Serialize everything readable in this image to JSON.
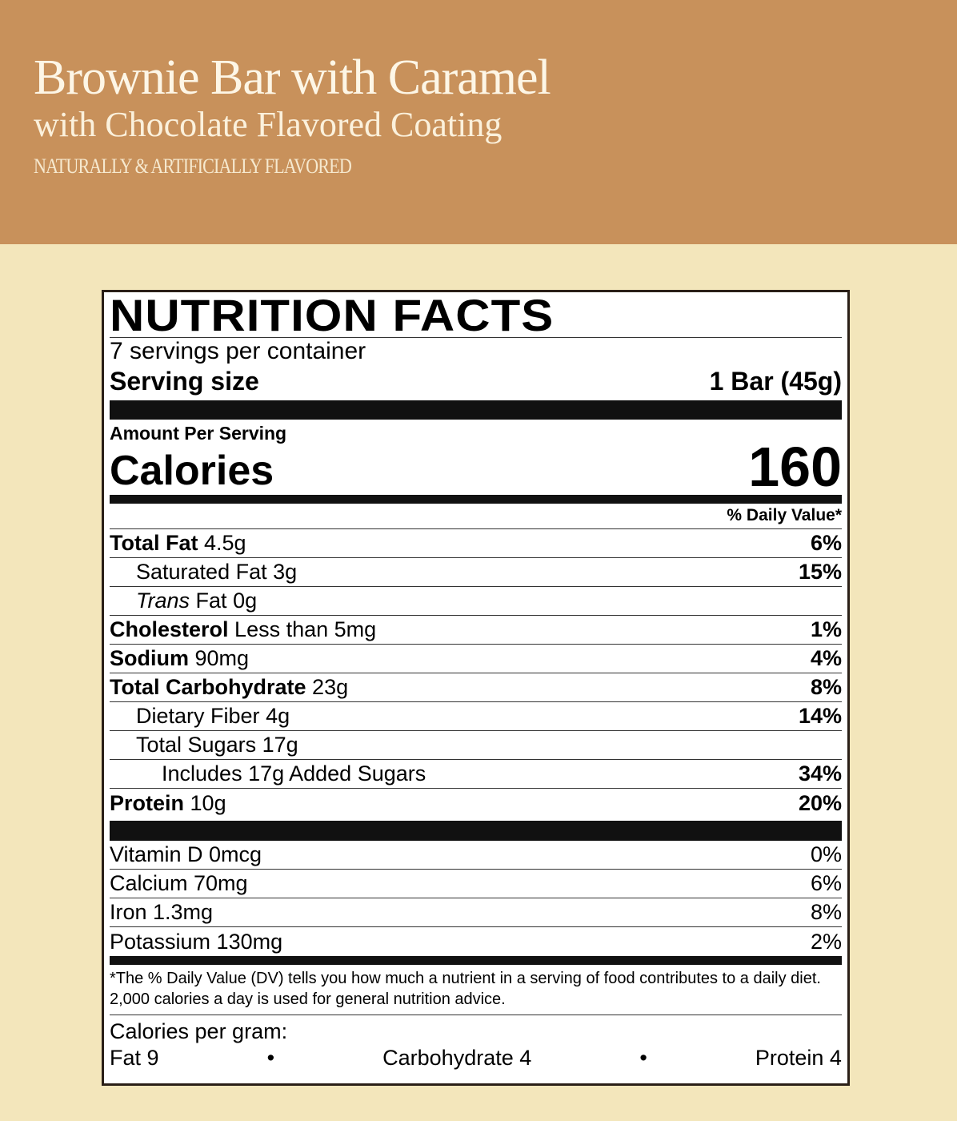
{
  "header": {
    "title": "Brownie Bar with Caramel",
    "subtitle": "with Chocolate Flavored Coating",
    "flavor_note": "NATURALLY & ARTIFICIALLY FLAVORED"
  },
  "colors": {
    "header_bg": "#c8915b",
    "page_bg": "#f3e6bb"
  },
  "label": {
    "title": "NUTRITION FACTS",
    "servings": "7 servings per container",
    "serving_size_label": "Serving size",
    "serving_size_value": "1 Bar (45g)",
    "amount_per_serving": "Amount Per Serving",
    "calories_label": "Calories",
    "calories_value": "160",
    "dv_header": "% Daily Value*",
    "nutrients": [
      {
        "name": "Total Fat",
        "amount": "4.5g",
        "dv": "6%",
        "bold": true,
        "indent": 0
      },
      {
        "name": "Saturated Fat",
        "amount": "3g",
        "dv": "15%",
        "bold": false,
        "indent": 1
      },
      {
        "name": "Trans",
        "name_rest": "Fat",
        "amount": "0g",
        "dv": "",
        "bold": false,
        "indent": 1,
        "italic": true
      },
      {
        "name": "Cholesterol",
        "amount": "Less than 5mg",
        "dv": "1%",
        "bold": true,
        "indent": 0
      },
      {
        "name": "Sodium",
        "amount": "90mg",
        "dv": "4%",
        "bold": true,
        "indent": 0
      },
      {
        "name": "Total Carbohydrate",
        "amount": "23g",
        "dv": "8%",
        "bold": true,
        "indent": 0
      },
      {
        "name": "Dietary Fiber",
        "amount": "4g",
        "dv": "14%",
        "bold": false,
        "indent": 1
      },
      {
        "name": "Total Sugars",
        "amount": "17g",
        "dv": "",
        "bold": false,
        "indent": 1
      },
      {
        "name": "Includes 17g Added Sugars",
        "amount": "",
        "dv": "34%",
        "bold": false,
        "indent": 2
      },
      {
        "name": "Protein",
        "amount": "10g",
        "dv": "20%",
        "bold": true,
        "indent": 0
      }
    ],
    "vitamins": [
      {
        "name": "Vitamin D 0mcg",
        "dv": "0%"
      },
      {
        "name": "Calcium 70mg",
        "dv": "6%"
      },
      {
        "name": "Iron 1.3mg",
        "dv": "8%"
      },
      {
        "name": "Potassium 130mg",
        "dv": "2%"
      }
    ],
    "footnote": "*The % Daily Value (DV) tells you how much a nutrient in a serving of food contributes to a daily diet. 2,000 calories a day is used for general nutrition advice.",
    "calories_per_gram": {
      "label": "Calories per gram:",
      "fat": "Fat 9",
      "carb": "Carbohydrate 4",
      "protein": "Protein 4",
      "separator": "•"
    }
  }
}
